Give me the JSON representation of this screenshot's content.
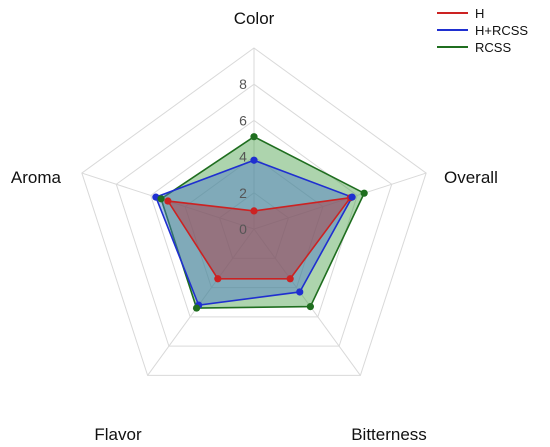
{
  "chart_data": {
    "type": "radar",
    "axes": [
      "Color",
      "Overall",
      "Bitterness",
      "Flavor",
      "Aroma"
    ],
    "r_ticks": [
      "0",
      "2",
      "4",
      "6",
      "8"
    ],
    "r_range": [
      0,
      8
    ],
    "grid": true,
    "legend": "top-right",
    "series": [
      {
        "name": "H",
        "color": "#cc2222",
        "fill": "#b0303a",
        "values": [
          1.0,
          5.6,
          3.4,
          3.4,
          5.0
        ]
      },
      {
        "name": "H+RCSS",
        "color": "#1f2fd0",
        "fill": "#4a78c8",
        "values": [
          3.8,
          5.7,
          4.3,
          5.2,
          5.7
        ]
      },
      {
        "name": "RCSS",
        "color": "#1f6e1f",
        "fill": "#4aa04a",
        "values": [
          5.1,
          6.4,
          5.3,
          5.4,
          5.4
        ]
      }
    ]
  }
}
